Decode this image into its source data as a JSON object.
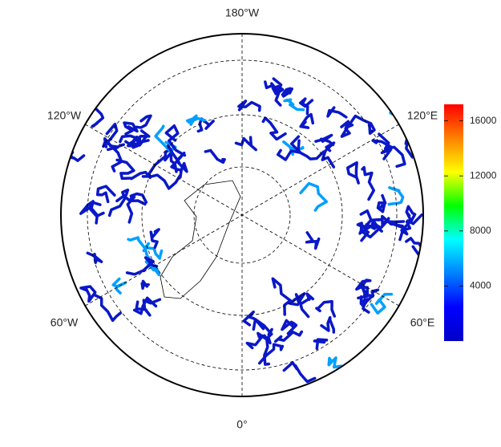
{
  "map": {
    "meridian_labels": [
      "180°W",
      "120°E",
      "60°E",
      "0°",
      "60°W",
      "120°W"
    ]
  },
  "colorbar": {
    "range": [
      0,
      17200
    ],
    "ticks": [
      4000,
      8000,
      12000,
      16000
    ],
    "colors": [
      "#0000c8",
      "#0000ff",
      "#0080ff",
      "#00ffff",
      "#00ff00",
      "#ffff00",
      "#ff8000",
      "#ff0000"
    ]
  }
}
